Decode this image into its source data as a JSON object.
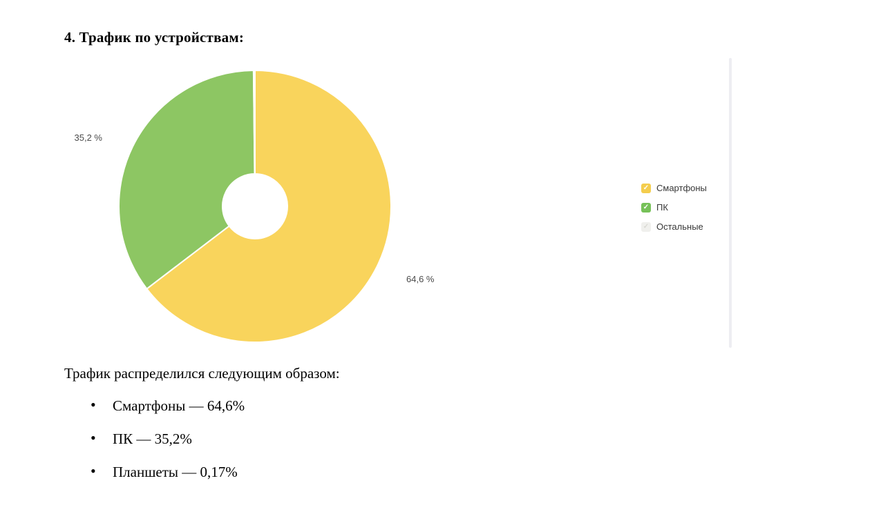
{
  "heading": "4. Трафик по устройствам:",
  "chart_data": {
    "type": "pie",
    "subtype": "donut",
    "title": "Трафик по устройствам",
    "start_angle_deg": 0,
    "direction": "clockwise",
    "inner_radius_ratio": 0.24,
    "legend_position": "right",
    "series": [
      {
        "id": "smartphones",
        "name": "Смартфоны",
        "value": 64.6,
        "label": "64,6 %",
        "color": "#F9D45C"
      },
      {
        "id": "pc",
        "name": "ПК",
        "value": 35.2,
        "label": "35,2 %",
        "color": "#8DC663"
      },
      {
        "id": "other",
        "name": "Остальные",
        "value": 0.17,
        "label": "",
        "color": "#F1F1EB"
      }
    ]
  },
  "legend": {
    "items": [
      {
        "id": "smartphones",
        "label": "Смартфоны",
        "checked": true,
        "color": "#F4CD4D"
      },
      {
        "id": "pc",
        "label": "ПК",
        "checked": true,
        "color": "#76C158"
      },
      {
        "id": "other",
        "label": "Остальные",
        "checked": true,
        "color": "#F0F0ED"
      }
    ]
  },
  "icons": {
    "checkbox_check": "✓",
    "bullet": "●"
  },
  "paragraph": "Трафик распределился следующим образом:",
  "list": {
    "items": [
      "Смартфоны — 64,6%",
      "ПК — 35,2%",
      "Планшеты — 0,17%"
    ]
  }
}
